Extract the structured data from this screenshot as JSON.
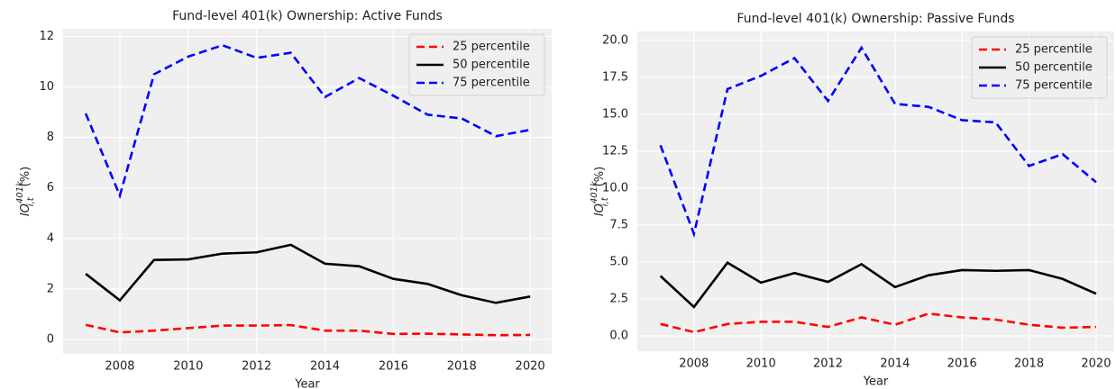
{
  "chart_data": [
    {
      "type": "line",
      "title": "Fund-level 401(k) Ownership: Active Funds",
      "x_label": "Year",
      "y_label": {
        "base": "IO",
        "sub": "i,t",
        "sup": "401k",
        "unit": "(%)"
      },
      "x": [
        2007,
        2008,
        2009,
        2010,
        2011,
        2012,
        2013,
        2014,
        2015,
        2016,
        2017,
        2018,
        2019,
        2020
      ],
      "series": [
        {
          "name": "25 percentile",
          "color": "#ff0000",
          "linestyle": "dashed",
          "values": [
            0.58,
            0.28,
            0.35,
            0.45,
            0.55,
            0.55,
            0.57,
            0.35,
            0.35,
            0.22,
            0.23,
            0.2,
            0.17,
            0.18
          ]
        },
        {
          "name": "50 percentile",
          "color": "#000000",
          "linestyle": "solid",
          "values": [
            2.6,
            1.55,
            3.15,
            3.17,
            3.4,
            3.45,
            3.75,
            3.0,
            2.9,
            2.4,
            2.2,
            1.75,
            1.45,
            1.7
          ]
        },
        {
          "name": "75 percentile",
          "color": "#0000ff",
          "linestyle": "dashed",
          "values": [
            8.95,
            5.7,
            10.5,
            11.2,
            11.65,
            11.15,
            11.35,
            9.6,
            10.35,
            9.65,
            8.9,
            8.75,
            8.05,
            8.3
          ]
        }
      ],
      "xlim": [
        2006.34,
        2020.63
      ],
      "xticks": [
        2008,
        2010,
        2012,
        2014,
        2016,
        2018,
        2020
      ],
      "ylim": [
        -0.57,
        12.3
      ],
      "yticks": [
        0,
        2,
        4,
        6,
        8,
        10,
        12
      ],
      "grid": true,
      "legend": "upper right"
    },
    {
      "type": "line",
      "title": "Fund-level 401(k) Ownership: Passive Funds",
      "x_label": "Year",
      "y_label": {
        "base": "IO",
        "sub": "i,t",
        "sup": "401k",
        "unit": "(%)"
      },
      "x": [
        2007,
        2008,
        2009,
        2010,
        2011,
        2012,
        2013,
        2014,
        2015,
        2016,
        2017,
        2018,
        2019,
        2020
      ],
      "series": [
        {
          "name": "25 percentile",
          "color": "#ff0000",
          "linestyle": "dashed",
          "values": [
            0.8,
            0.25,
            0.8,
            0.95,
            0.95,
            0.6,
            1.25,
            0.75,
            1.5,
            1.25,
            1.1,
            0.75,
            0.55,
            0.6
          ]
        },
        {
          "name": "50 percentile",
          "color": "#000000",
          "linestyle": "solid",
          "values": [
            4.05,
            1.95,
            4.95,
            3.6,
            4.25,
            3.65,
            4.85,
            3.3,
            4.1,
            4.45,
            4.4,
            4.45,
            3.85,
            2.85
          ]
        },
        {
          "name": "75 percentile",
          "color": "#0000ff",
          "linestyle": "dashed",
          "values": [
            12.9,
            6.9,
            16.7,
            17.6,
            18.8,
            15.9,
            19.5,
            15.7,
            15.5,
            14.6,
            14.45,
            11.5,
            12.3,
            10.4
          ]
        }
      ],
      "xlim": [
        2006.31,
        2020.54
      ],
      "xticks": [
        2008,
        2010,
        2012,
        2014,
        2016,
        2018,
        2020
      ],
      "ylim": [
        -1.04,
        20.6
      ],
      "yticks": [
        {
          "value": 0,
          "label": "0.0"
        },
        {
          "value": 2.5,
          "label": "2.5"
        },
        {
          "value": 5,
          "label": "5.0"
        },
        {
          "value": 7.5,
          "label": "7.5"
        },
        {
          "value": 10,
          "label": "10.0"
        },
        {
          "value": 12.5,
          "label": "12.5"
        },
        {
          "value": 15,
          "label": "15.0"
        },
        {
          "value": 17.5,
          "label": "17.5"
        },
        {
          "value": 20,
          "label": "20.0"
        }
      ],
      "grid": true,
      "legend": "upper right"
    }
  ]
}
